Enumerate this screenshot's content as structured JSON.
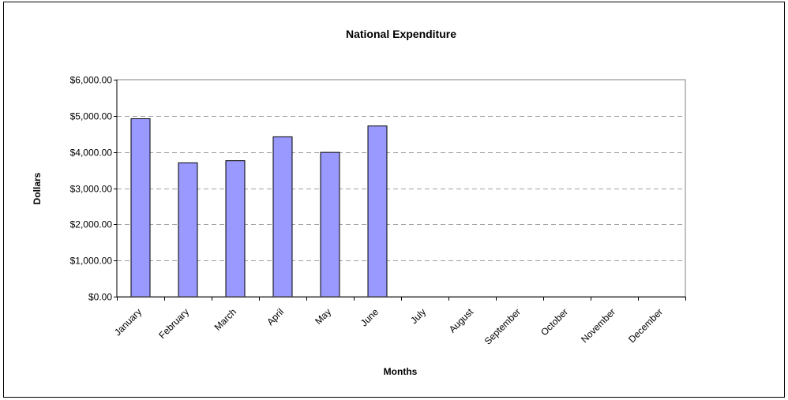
{
  "chart_data": {
    "type": "bar",
    "title": "National Expenditure",
    "xlabel": "Months",
    "ylabel": "Dollars",
    "categories": [
      "January",
      "February",
      "March",
      "April",
      "May",
      "June",
      "July",
      "August",
      "September",
      "October",
      "November",
      "December"
    ],
    "series": [
      {
        "values": [
          4920,
          3700,
          3760,
          4420,
          3990,
          4720,
          null,
          null,
          null,
          null,
          null,
          null
        ]
      }
    ],
    "ylim": [
      0,
      6000
    ],
    "yticks": [
      0,
      1000,
      2000,
      3000,
      4000,
      5000,
      6000
    ],
    "ytick_labels": [
      "$0.00",
      "$1,000.00",
      "$2,000.00",
      "$3,000.00",
      "$4,000.00",
      "$5,000.00",
      "$6,000.00"
    ],
    "grid": true,
    "legend": "none",
    "colors": {
      "bar_fill": "#9999ff",
      "bar_stroke": "#000000",
      "grid": "#a0a0a0",
      "axis": "#000000"
    }
  }
}
